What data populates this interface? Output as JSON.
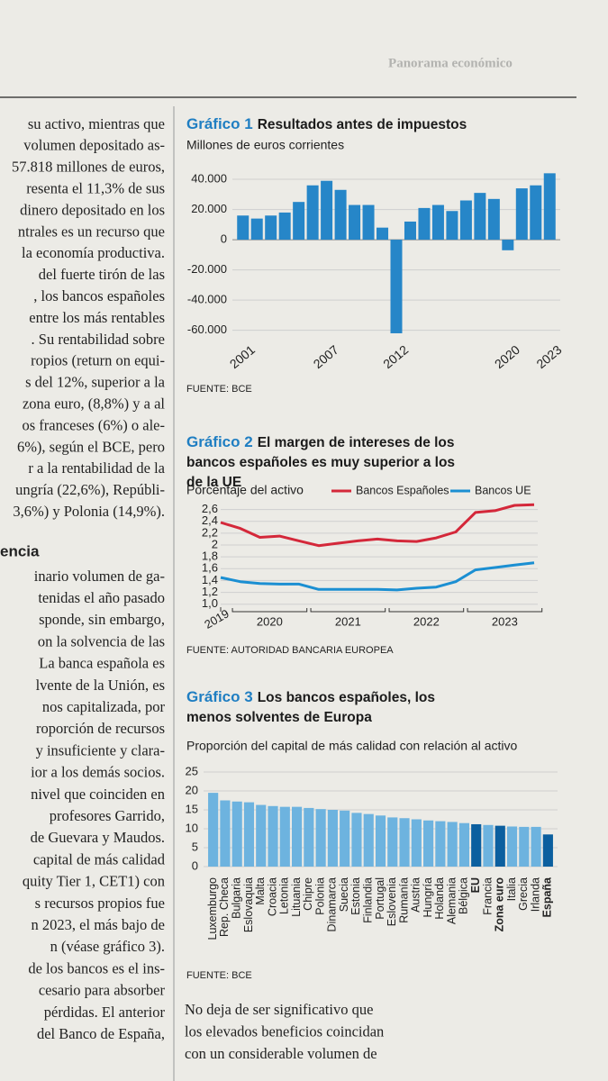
{
  "header": "Panorama económico",
  "left_column": {
    "lines_a": [
      "su activo, mientras que",
      "volumen depositado as-",
      "57.818 millones de euros,",
      "resenta el 11,3% de sus",
      "dinero depositado en los",
      "ntrales es un recurso que",
      "la economía productiva.",
      "del fuerte tirón de las",
      ", los bancos españoles",
      "entre los más rentables",
      ". Su rentabilidad sobre",
      "ropios (return on equi-",
      "s del 12%, superior a la",
      "zona euro, (8,8%) y a al",
      "os franceses (6%) o ale-",
      "6%), según el BCE, pero",
      "r a la rentabilidad de la",
      "ungría (22,6%), Repúbli-",
      "3,6%) y Polonia (14,9%)."
    ],
    "heading": "encia",
    "lines_b": [
      "inario volumen de ga-",
      "tenidas el año pasado",
      "sponde, sin embargo,",
      "on la solvencia de las",
      "La banca española es",
      "lvente de la Unión, es",
      "nos capitalizada, por",
      "roporción de recursos",
      "y insuficiente y clara-",
      "ior a los demás socios.",
      "nivel que coinciden en",
      "profesores Garrido,",
      "de Guevara y Maudos.",
      "capital de más calidad",
      "quity Tier 1, CET1) con",
      "s recursos propios fue",
      "n 2023, el más bajo de",
      "n (véase gráfico 3).",
      "de los bancos es el ins-",
      "cesario para absorber",
      "pérdidas. El anterior",
      "del Banco de España,"
    ]
  },
  "bottom_text": [
    "No deja de ser significativo que",
    "los elevados beneficios coincidan",
    "con un considerable volumen de"
  ],
  "chart_data": [
    {
      "type": "bar",
      "label": "Gráfico 1",
      "title": "Resultados antes de impuestos",
      "subtitle": "Millones de euros corrientes",
      "categories": [
        "2001",
        null,
        null,
        null,
        null,
        null,
        "2007",
        null,
        null,
        null,
        null,
        "2012",
        null,
        null,
        null,
        null,
        null,
        null,
        null,
        "2020",
        null,
        null,
        "2023"
      ],
      "values": [
        16000,
        14000,
        16000,
        18000,
        25000,
        36000,
        39000,
        33000,
        23000,
        23000,
        8000,
        -62000,
        12000,
        21000,
        23000,
        19000,
        26000,
        31000,
        27000,
        -7000,
        34000,
        36000,
        44000
      ],
      "color": "#2686c8",
      "ylim": [
        -65000,
        46000
      ],
      "yticks": [
        {
          "value": 40000,
          "label": "40.000"
        },
        {
          "value": 20000,
          "label": "20.000"
        },
        0,
        {
          "value": -20000,
          "label": "-20.000"
        },
        {
          "value": -40000,
          "label": "-40.000"
        },
        {
          "value": -60000,
          "label": "-60.000"
        }
      ],
      "grid": true,
      "source": "FUENTE: BCE"
    },
    {
      "type": "line",
      "label": "Gráfico 2",
      "title": "El margen de intereses de los bancos españoles es muy superior a los de la UE",
      "subtitle": "Porcentaje del activo",
      "categories": [
        "2019",
        null,
        null,
        null,
        null,
        null,
        null,
        null,
        null,
        null,
        null,
        null,
        null,
        null,
        null,
        null,
        null
      ],
      "year_labels": [
        "2020",
        "2021",
        "2022",
        "2023"
      ],
      "series": [
        {
          "name": "Bancos Españoles",
          "color": "#d4283a",
          "values": [
            2.38,
            2.28,
            2.13,
            2.15,
            2.07,
            1.99,
            2.03,
            2.07,
            2.1,
            2.07,
            2.06,
            2.12,
            2.22,
            2.55,
            2.58,
            2.67,
            2.68
          ]
        },
        {
          "name": "Bancos UE",
          "color": "#1b8fd2",
          "values": [
            1.45,
            1.38,
            1.35,
            1.34,
            1.34,
            1.25,
            1.25,
            1.25,
            1.25,
            1.24,
            1.27,
            1.29,
            1.38,
            1.58,
            1.62,
            1.66,
            1.7
          ]
        }
      ],
      "ylim": [
        0.95,
        2.7
      ],
      "yticks": [
        {
          "value": 1.0,
          "label": "1,0"
        },
        {
          "value": 1.2,
          "label": "1,2"
        },
        {
          "value": 1.4,
          "label": "1,4"
        },
        {
          "value": 1.6,
          "label": "1,6"
        },
        {
          "value": 1.8,
          "label": "1,8"
        },
        2,
        {
          "value": 2.2,
          "label": "2,2"
        },
        {
          "value": 2.4,
          "label": "2,4"
        },
        {
          "value": 2.6,
          "label": "2,6"
        }
      ],
      "grid": true,
      "legend": "top",
      "source": "FUENTE: AUTORIDAD BANCARIA EUROPEA"
    },
    {
      "type": "bar",
      "label": "Gráfico 3",
      "title": "Los bancos españoles, los menos solventes de Europa",
      "subtitle": "Proporción del capital de más calidad con relación al activo",
      "categories": [
        "Luxemburgo",
        "Rep. Checa",
        "Bulgaria",
        "Eslovaquia",
        "Malta",
        "Croacia",
        "Letonia",
        "Lituania",
        "Chipre",
        "Polonia",
        "Dinamarca",
        "Suecia",
        "Estonia",
        "Finlandia",
        "Portugal",
        "Eslovenia",
        "Rumanía",
        "Austria",
        "Hungría",
        "Holanda",
        "Alemania",
        "Bélgica",
        "EU",
        "Francia",
        "Zona euro",
        "Italia",
        "Grecia",
        "Irlanda",
        "España"
      ],
      "values": [
        19.5,
        17.5,
        17.2,
        17,
        16.3,
        16,
        15.8,
        15.8,
        15.5,
        15.2,
        15,
        14.8,
        14.2,
        13.9,
        13.5,
        13,
        12.8,
        12.5,
        12.2,
        12,
        11.8,
        11.5,
        11.2,
        11,
        10.8,
        10.6,
        10.5,
        10.5,
        8.5
      ],
      "colors": [
        "#6db3df",
        "#6db3df",
        "#6db3df",
        "#6db3df",
        "#6db3df",
        "#6db3df",
        "#6db3df",
        "#6db3df",
        "#6db3df",
        "#6db3df",
        "#6db3df",
        "#6db3df",
        "#6db3df",
        "#6db3df",
        "#6db3df",
        "#6db3df",
        "#6db3df",
        "#6db3df",
        "#6db3df",
        "#6db3df",
        "#6db3df",
        "#6db3df",
        "#0b5f9f",
        "#6db3df",
        "#0b5f9f",
        "#6db3df",
        "#6db3df",
        "#6db3df",
        "#0b5f9f"
      ],
      "highlight_color": "#0b5f9f",
      "ylim": [
        0,
        25
      ],
      "yticks": [
        0,
        5,
        10,
        15,
        20,
        25
      ],
      "grid": true,
      "source": "FUENTE: BCE"
    }
  ]
}
